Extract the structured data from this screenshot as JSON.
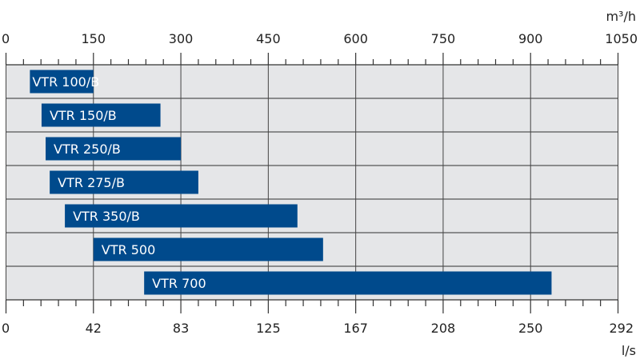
{
  "chart_data": {
    "type": "bar",
    "orientation": "horizontal-range",
    "top_axis": {
      "unit": "m³/h",
      "range": [
        0,
        1050
      ],
      "ticks": [
        "0",
        "150",
        "300",
        "450",
        "600",
        "750",
        "900",
        "1050"
      ],
      "tick_values": [
        0,
        150,
        300,
        450,
        600,
        750,
        900,
        1050
      ]
    },
    "bottom_axis": {
      "unit": "l/s",
      "range": [
        0,
        292
      ],
      "ticks": [
        "0",
        "42",
        "83",
        "125",
        "167",
        "208",
        "250",
        "292"
      ]
    },
    "categories": [
      "VTR 100/B",
      "VTR 150/B",
      "VTR 250/B",
      "VTR 275/B",
      "VTR 350/B",
      "VTR 500",
      "VTR 700"
    ],
    "ranges_m3h": [
      [
        41,
        150
      ],
      [
        61,
        265
      ],
      [
        68,
        300
      ],
      [
        75,
        330
      ],
      [
        101,
        500
      ],
      [
        150,
        544
      ],
      [
        237,
        936
      ]
    ],
    "grid": true,
    "colors": {
      "bar": "#004a8c",
      "background": "#e5e6e8",
      "grid": "#444444"
    }
  }
}
